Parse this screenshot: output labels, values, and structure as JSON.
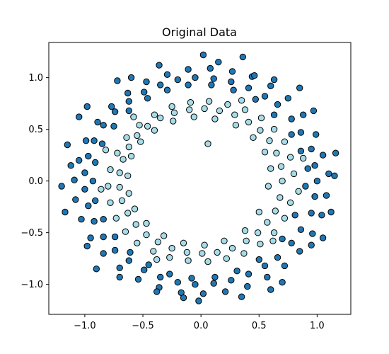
{
  "chart_data": {
    "type": "scatter",
    "title": "Original Data",
    "xlabel": "",
    "ylabel": "",
    "xlim": [
      -1.31,
      1.29
    ],
    "ylim": [
      -1.29,
      1.34
    ],
    "grid": false,
    "legend": "none",
    "x_ticks": [
      -1.0,
      -0.5,
      0.0,
      0.5,
      1.0
    ],
    "x_tick_labels": [
      "−1.0",
      "−0.5",
      "0.0",
      "0.5",
      "1.0"
    ],
    "y_ticks": [
      -1.0,
      -0.5,
      0.0,
      0.5,
      1.0
    ],
    "y_tick_labels": [
      "−1.0",
      "−0.5",
      "0.0",
      "0.5",
      "1.0"
    ],
    "series": [
      {
        "color": "#1f77b4",
        "edge_color": "#000000",
        "points": [
          [
            1.0,
            0.0
          ],
          [
            0.98,
            0.15
          ],
          [
            0.95,
            0.31
          ],
          [
            0.86,
            0.47
          ],
          [
            0.78,
            0.6
          ],
          [
            0.66,
            0.74
          ],
          [
            0.55,
            0.82
          ],
          [
            0.41,
            0.9
          ],
          [
            0.26,
            0.96
          ],
          [
            0.11,
            0.99
          ],
          [
            -0.05,
            1.0
          ],
          [
            -0.2,
            0.98
          ],
          [
            -0.35,
            0.93
          ],
          [
            -0.49,
            0.86
          ],
          [
            -0.62,
            0.77
          ],
          [
            -0.74,
            0.67
          ],
          [
            -0.84,
            0.54
          ],
          [
            -0.92,
            0.39
          ],
          [
            -0.97,
            0.24
          ],
          [
            -1.0,
            0.08
          ],
          [
            -1.0,
            -0.08
          ],
          [
            -0.97,
            -0.24
          ],
          [
            -0.92,
            -0.39
          ],
          [
            -0.84,
            -0.54
          ],
          [
            -0.74,
            -0.67
          ],
          [
            -0.62,
            -0.77
          ],
          [
            -0.49,
            -0.86
          ],
          [
            -0.35,
            -0.93
          ],
          [
            -0.2,
            -0.98
          ],
          [
            -0.05,
            -1.0
          ],
          [
            0.11,
            -0.99
          ],
          [
            0.26,
            -0.96
          ],
          [
            0.41,
            -0.9
          ],
          [
            0.55,
            -0.82
          ],
          [
            0.66,
            -0.74
          ],
          [
            0.78,
            -0.6
          ],
          [
            0.86,
            -0.47
          ],
          [
            0.95,
            -0.31
          ],
          [
            0.98,
            -0.15
          ],
          [
            1.1,
            0.07
          ],
          [
            1.05,
            0.25
          ],
          [
            0.99,
            0.45
          ],
          [
            0.88,
            0.64
          ],
          [
            0.75,
            0.8
          ],
          [
            0.6,
            0.92
          ],
          [
            0.44,
            1.01
          ],
          [
            0.27,
            1.06
          ],
          [
            0.08,
            1.09
          ],
          [
            -0.11,
            1.08
          ],
          [
            -0.29,
            1.03
          ],
          [
            -0.47,
            0.96
          ],
          [
            -0.63,
            0.85
          ],
          [
            -0.77,
            0.72
          ],
          [
            -0.89,
            0.57
          ],
          [
            -0.99,
            0.39
          ],
          [
            -1.05,
            0.2
          ],
          [
            -1.09,
            0.01
          ],
          [
            -1.08,
            -0.18
          ],
          [
            -1.03,
            -0.37
          ],
          [
            -0.95,
            -0.55
          ],
          [
            -0.84,
            -0.7
          ],
          [
            -0.7,
            -0.84
          ],
          [
            -0.54,
            -0.95
          ],
          [
            -0.36,
            -1.03
          ],
          [
            -0.17,
            -1.08
          ],
          [
            0.02,
            -1.09
          ],
          [
            0.21,
            -1.07
          ],
          [
            0.4,
            -1.02
          ],
          [
            0.57,
            -0.93
          ],
          [
            0.72,
            -0.82
          ],
          [
            0.85,
            -0.68
          ],
          [
            0.96,
            -0.51
          ],
          [
            1.04,
            -0.33
          ],
          [
            1.08,
            -0.14
          ],
          [
            0.92,
            0.12
          ],
          [
            0.9,
            -0.05
          ],
          [
            0.86,
            0.29
          ],
          [
            0.81,
            -0.33
          ],
          [
            0.78,
            0.45
          ],
          [
            0.7,
            -0.56
          ],
          [
            0.63,
            0.64
          ],
          [
            0.5,
            -0.76
          ],
          [
            0.47,
            0.79
          ],
          [
            0.31,
            -0.87
          ],
          [
            0.28,
            0.88
          ],
          [
            0.12,
            -0.93
          ],
          [
            0.09,
            0.93
          ],
          [
            -0.08,
            -0.94
          ],
          [
            -0.11,
            0.93
          ],
          [
            -0.27,
            -0.9
          ],
          [
            -0.29,
            0.88
          ],
          [
            -0.45,
            -0.81
          ],
          [
            -0.46,
            0.8
          ],
          [
            -0.61,
            -0.69
          ],
          [
            -0.62,
            0.68
          ],
          [
            -0.74,
            -0.54
          ],
          [
            -0.75,
            0.53
          ],
          [
            -0.84,
            -0.37
          ],
          [
            -0.85,
            0.36
          ],
          [
            -0.91,
            -0.19
          ],
          [
            -0.91,
            0.18
          ],
          [
            -0.93,
            0.0
          ],
          [
            1.16,
            0.27
          ],
          [
            1.12,
            -0.3
          ],
          [
            0.97,
            0.68
          ],
          [
            0.95,
            -0.62
          ],
          [
            0.63,
            0.98
          ],
          [
            0.7,
            -0.98
          ],
          [
            0.36,
            1.2
          ],
          [
            0.35,
            -1.12
          ],
          [
            0.02,
            1.22
          ],
          [
            -0.02,
            -1.16
          ],
          [
            -0.36,
            1.12
          ],
          [
            -0.38,
            -1.07
          ],
          [
            -0.72,
            0.97
          ],
          [
            -0.7,
            -0.93
          ],
          [
            -0.98,
            0.72
          ],
          [
            -0.98,
            -0.63
          ],
          [
            -1.15,
            0.35
          ],
          [
            -1.17,
            -0.3
          ],
          [
            -1.2,
            -0.05
          ],
          [
            0.46,
            1.02
          ],
          [
            -0.6,
            1.0
          ],
          [
            1.05,
            -0.55
          ],
          [
            -1.05,
            0.62
          ],
          [
            0.15,
            1.15
          ],
          [
            -0.15,
            -1.13
          ],
          [
            0.85,
            0.9
          ],
          [
            -0.9,
            -0.85
          ],
          [
            1.15,
            0.05
          ],
          [
            -1.12,
            0.15
          ],
          [
            0.6,
            -1.05
          ]
        ]
      },
      {
        "color": "#a6dce8",
        "edge_color": "#000000",
        "points": [
          [
            0.7,
            0.0
          ],
          [
            0.69,
            0.14
          ],
          [
            0.65,
            0.27
          ],
          [
            0.59,
            0.39
          ],
          [
            0.51,
            0.49
          ],
          [
            0.41,
            0.57
          ],
          [
            0.29,
            0.64
          ],
          [
            0.16,
            0.68
          ],
          [
            0.03,
            0.7
          ],
          [
            -0.1,
            0.69
          ],
          [
            -0.23,
            0.66
          ],
          [
            -0.35,
            0.61
          ],
          [
            -0.46,
            0.53
          ],
          [
            -0.55,
            0.44
          ],
          [
            -0.62,
            0.33
          ],
          [
            -0.67,
            0.21
          ],
          [
            -0.7,
            0.08
          ],
          [
            -0.7,
            -0.06
          ],
          [
            -0.68,
            -0.19
          ],
          [
            -0.63,
            -0.31
          ],
          [
            -0.56,
            -0.42
          ],
          [
            -0.47,
            -0.52
          ],
          [
            -0.37,
            -0.59
          ],
          [
            -0.25,
            -0.65
          ],
          [
            -0.12,
            -0.69
          ],
          [
            0.01,
            -0.7
          ],
          [
            0.14,
            -0.69
          ],
          [
            0.27,
            -0.65
          ],
          [
            0.39,
            -0.58
          ],
          [
            0.49,
            -0.5
          ],
          [
            0.57,
            -0.4
          ],
          [
            0.64,
            -0.29
          ],
          [
            0.68,
            -0.16
          ],
          [
            0.8,
            0.07
          ],
          [
            0.77,
            0.23
          ],
          [
            0.72,
            0.38
          ],
          [
            0.63,
            0.5
          ],
          [
            0.52,
            0.61
          ],
          [
            0.38,
            0.69
          ],
          [
            0.23,
            0.74
          ],
          [
            0.07,
            0.77
          ],
          [
            -0.09,
            0.76
          ],
          [
            -0.25,
            0.72
          ],
          [
            -0.4,
            0.64
          ],
          [
            -0.53,
            0.54
          ],
          [
            -0.64,
            0.42
          ],
          [
            -0.72,
            0.27
          ],
          [
            -0.78,
            0.11
          ],
          [
            -0.8,
            -0.05
          ],
          [
            -0.78,
            -0.21
          ],
          [
            -0.73,
            -0.36
          ],
          [
            -0.65,
            -0.49
          ],
          [
            -0.55,
            -0.6
          ],
          [
            -0.41,
            -0.68
          ],
          [
            -0.27,
            -0.74
          ],
          [
            -0.11,
            -0.77
          ],
          [
            0.06,
            -0.78
          ],
          [
            0.22,
            -0.75
          ],
          [
            0.37,
            -0.7
          ],
          [
            0.51,
            -0.61
          ],
          [
            0.63,
            -0.5
          ],
          [
            0.72,
            -0.36
          ],
          [
            0.77,
            -0.21
          ],
          [
            0.6,
            0.12
          ],
          [
            0.58,
            -0.05
          ],
          [
            0.55,
            0.28
          ],
          [
            0.5,
            -0.3
          ],
          [
            0.45,
            0.42
          ],
          [
            0.38,
            -0.48
          ],
          [
            0.3,
            0.54
          ],
          [
            0.2,
            -0.58
          ],
          [
            0.12,
            0.6
          ],
          [
            0.03,
            -0.62
          ],
          [
            -0.06,
            0.62
          ],
          [
            -0.15,
            -0.6
          ],
          [
            -0.24,
            0.58
          ],
          [
            -0.32,
            -0.53
          ],
          [
            -0.4,
            0.49
          ],
          [
            -0.47,
            -0.41
          ],
          [
            -0.52,
            0.38
          ],
          [
            -0.57,
            -0.27
          ],
          [
            -0.6,
            0.24
          ],
          [
            -0.62,
            -0.12
          ],
          [
            -0.63,
            0.05
          ],
          [
            0.06,
            0.36
          ],
          [
            0.88,
            0.22
          ],
          [
            -0.86,
            -0.08
          ],
          [
            0.35,
            0.78
          ],
          [
            -0.58,
            0.62
          ],
          [
            0.62,
            -0.58
          ],
          [
            -0.38,
            -0.76
          ],
          [
            0.84,
            -0.1
          ],
          [
            -0.82,
            0.3
          ]
        ]
      }
    ]
  }
}
